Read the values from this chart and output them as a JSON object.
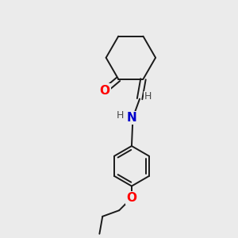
{
  "background_color": "#ebebeb",
  "bond_color": "#1a1a1a",
  "atom_colors": {
    "O": "#ff0000",
    "N": "#0000cc",
    "H_label": "#4a4a4a",
    "C": "#1a1a1a"
  },
  "figsize": [
    3.0,
    3.0
  ],
  "dpi": 100,
  "lw": 1.4,
  "font_size_atom": 11,
  "font_size_h": 9,
  "xlim": [
    0,
    10
  ],
  "ylim": [
    0,
    10
  ]
}
